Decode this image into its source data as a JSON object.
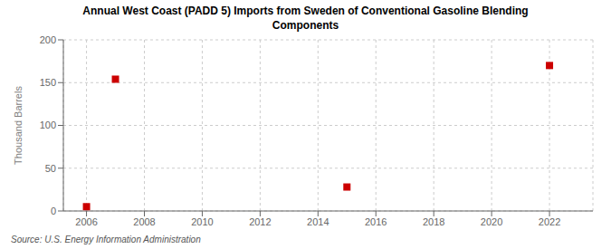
{
  "chart_data": {
    "type": "scatter",
    "title": "Annual West Coast (PADD 5) Imports from Sweden of Conventional Gasoline Blending\nComponents",
    "y_label": "Thousand Barrels",
    "source": "Source: U.S. Energy Information Administration",
    "x": [
      2006,
      2007,
      2015,
      2022
    ],
    "values": [
      5,
      154,
      28,
      170
    ],
    "color": "#cc0000",
    "marker": "square",
    "xlim": [
      2005.2,
      2023.5
    ],
    "ylim": [
      0,
      200
    ],
    "xticks": [
      2006,
      2008,
      2010,
      2012,
      2014,
      2016,
      2018,
      2020,
      2022
    ],
    "yticks": [
      0,
      50,
      100,
      150,
      200
    ],
    "grid": true
  }
}
